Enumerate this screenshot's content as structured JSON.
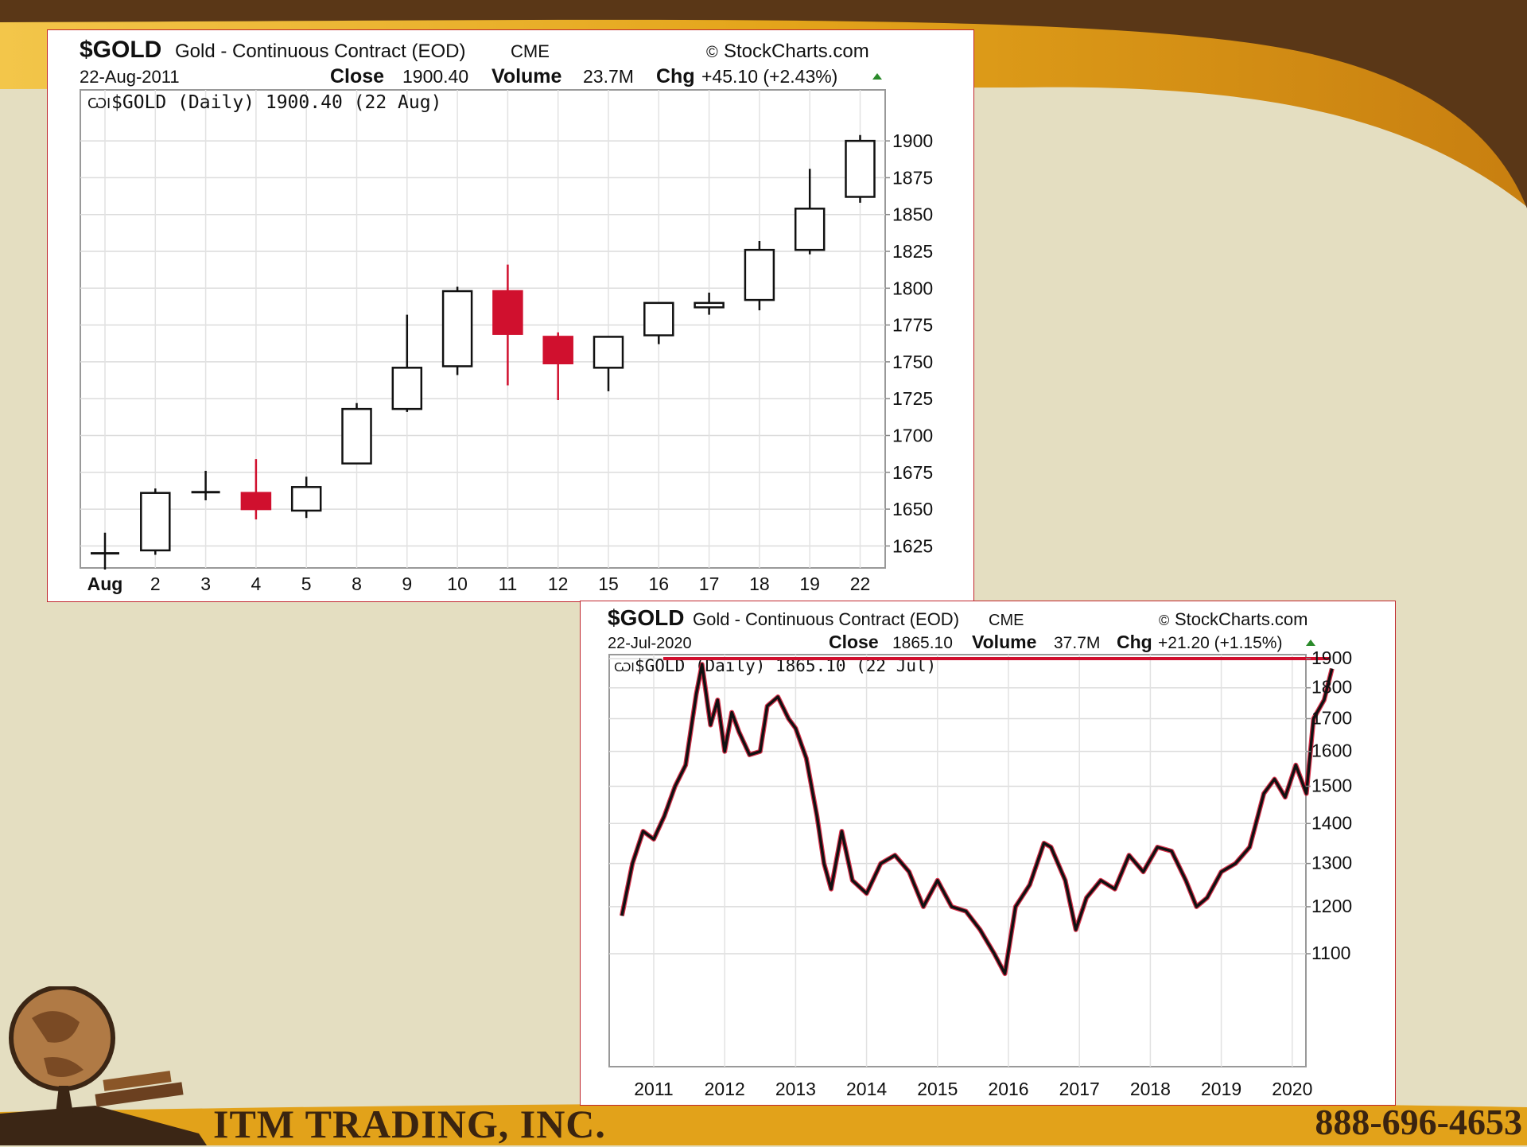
{
  "brand": {
    "company": "ITM TRADING, INC.",
    "phone": "888-696-4653",
    "colors": {
      "background": "#e4dec1",
      "header_brown": "#5a3717",
      "gold": "#e2a21a",
      "up_candle": "#ffffff",
      "down_candle": "#d0102e",
      "resistance_line": "#d0102e"
    }
  },
  "chart1": {
    "symbol": "$GOLD",
    "name": "Gold - Continuous Contract (EOD)",
    "exchange": "CME",
    "source": "StockCharts.com",
    "date": "22-Aug-2011",
    "close_label": "Close",
    "close_value": "1900.40",
    "volume_label": "Volume",
    "volume_value": "23.7M",
    "chg_label": "Chg",
    "chg_value": "+45.10 (+2.43%)",
    "legend": "$GOLD (Daily) 1900.40 (22 Aug)",
    "chart_data": {
      "type": "candlestick",
      "categories": [
        "Aug",
        "2",
        "3",
        "4",
        "5",
        "8",
        "9",
        "10",
        "11",
        "12",
        "15",
        "16",
        "17",
        "18",
        "19",
        "22"
      ],
      "ohlc": [
        [
          1620,
          1634,
          1609,
          1620
        ],
        [
          1622,
          1664,
          1619,
          1661
        ],
        [
          1661,
          1676,
          1656,
          1662
        ],
        [
          1661,
          1684,
          1643,
          1650
        ],
        [
          1649,
          1672,
          1644,
          1665
        ],
        [
          1681,
          1722,
          1681,
          1718
        ],
        [
          1718,
          1782,
          1716,
          1746
        ],
        [
          1747,
          1801,
          1741,
          1798
        ],
        [
          1798,
          1816,
          1734,
          1769
        ],
        [
          1767,
          1770,
          1724,
          1749
        ],
        [
          1746,
          1767,
          1730,
          1767
        ],
        [
          1768,
          1790,
          1762,
          1790
        ],
        [
          1787,
          1797,
          1782,
          1790
        ],
        [
          1792,
          1832,
          1785,
          1826
        ],
        [
          1826,
          1881,
          1823,
          1854
        ],
        [
          1862,
          1904,
          1858,
          1900
        ]
      ],
      "yticks": [
        1625,
        1650,
        1675,
        1700,
        1725,
        1750,
        1775,
        1800,
        1825,
        1850,
        1875,
        1900
      ],
      "grid": true
    }
  },
  "chart2": {
    "symbol": "$GOLD",
    "name": "Gold - Continuous Contract (EOD)",
    "exchange": "CME",
    "source": "StockCharts.com",
    "date": "22-Jul-2020",
    "close_label": "Close",
    "close_value": "1865.10",
    "volume_label": "Volume",
    "volume_value": "37.7M",
    "chg_label": "Chg",
    "chg_value": "+21.20 (+1.15%)",
    "legend": "$GOLD (Daily) 1865.10 (22 Jul)",
    "chart_data": {
      "type": "line",
      "x": [
        2010.55,
        2010.7,
        2010.85,
        2011.0,
        2011.15,
        2011.3,
        2011.45,
        2011.6,
        2011.68,
        2011.8,
        2011.9,
        2012.0,
        2012.1,
        2012.2,
        2012.35,
        2012.5,
        2012.6,
        2012.75,
        2012.9,
        2013.0,
        2013.15,
        2013.3,
        2013.4,
        2013.5,
        2013.65,
        2013.8,
        2014.0,
        2014.2,
        2014.4,
        2014.6,
        2014.8,
        2015.0,
        2015.2,
        2015.4,
        2015.6,
        2015.8,
        2015.95,
        2016.1,
        2016.3,
        2016.5,
        2016.6,
        2016.8,
        2016.95,
        2017.1,
        2017.3,
        2017.5,
        2017.7,
        2017.9,
        2018.1,
        2018.3,
        2018.5,
        2018.65,
        2018.8,
        2019.0,
        2019.2,
        2019.4,
        2019.6,
        2019.75,
        2019.9,
        2020.05,
        2020.2,
        2020.3,
        2020.45,
        2020.56
      ],
      "y": [
        1180,
        1300,
        1380,
        1360,
        1420,
        1500,
        1560,
        1780,
        1880,
        1680,
        1760,
        1600,
        1720,
        1660,
        1590,
        1600,
        1740,
        1770,
        1700,
        1670,
        1580,
        1420,
        1300,
        1240,
        1380,
        1260,
        1230,
        1300,
        1320,
        1280,
        1200,
        1260,
        1200,
        1190,
        1150,
        1100,
        1060,
        1200,
        1250,
        1350,
        1340,
        1260,
        1150,
        1220,
        1260,
        1240,
        1320,
        1280,
        1340,
        1330,
        1260,
        1200,
        1220,
        1280,
        1300,
        1340,
        1480,
        1520,
        1470,
        1560,
        1480,
        1700,
        1760,
        1865
      ],
      "xticks": [
        "2011",
        "2012",
        "2013",
        "2014",
        "2015",
        "2016",
        "2017",
        "2018",
        "2019",
        "2020"
      ],
      "yticks": [
        1100,
        1200,
        1300,
        1400,
        1500,
        1600,
        1700,
        1800,
        1900
      ],
      "ylog": true,
      "resistance_level": 1900,
      "grid": true
    }
  }
}
